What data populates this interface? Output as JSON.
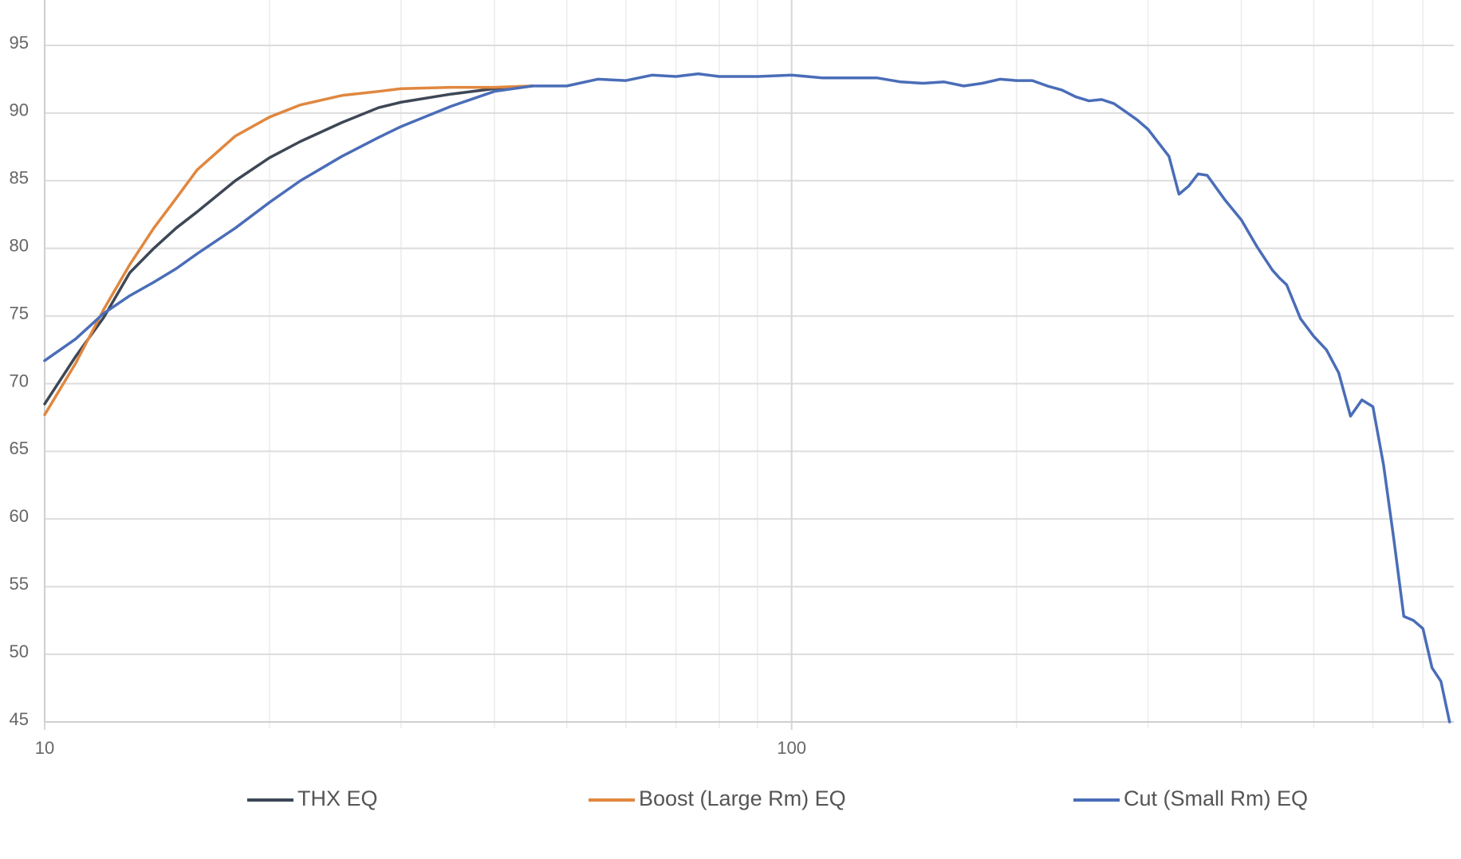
{
  "chart_data": {
    "type": "line",
    "log_x": true,
    "grid": true,
    "xlim": [
      10,
      770
    ],
    "ylim": [
      45,
      98
    ],
    "xticks": [
      10,
      100
    ],
    "xgrid_minor": [
      20,
      30,
      40,
      50,
      60,
      70,
      80,
      90,
      200,
      300,
      400,
      500,
      600,
      700
    ],
    "yticks": [
      45,
      50,
      55,
      60,
      65,
      70,
      75,
      80,
      85,
      90,
      95
    ],
    "series": [
      {
        "name": "THX EQ",
        "color": "#3e4756",
        "x": [
          10,
          11,
          12,
          13,
          14,
          15,
          16,
          18,
          20,
          22,
          25,
          28,
          30,
          35,
          40,
          45
        ],
        "values": [
          68.5,
          72.0,
          74.9,
          78.2,
          80.0,
          81.5,
          82.7,
          85.0,
          86.7,
          87.9,
          89.3,
          90.4,
          90.8,
          91.4,
          91.8,
          92.0
        ]
      },
      {
        "name": "Boost (Large Rm) EQ",
        "color": "#e0873f",
        "x": [
          10,
          11,
          12,
          13,
          14,
          15,
          16,
          18,
          20,
          22,
          25,
          28,
          30,
          35,
          40,
          45
        ],
        "values": [
          67.7,
          71.5,
          75.5,
          78.8,
          81.5,
          83.7,
          85.8,
          88.3,
          89.7,
          90.6,
          91.3,
          91.6,
          91.8,
          91.9,
          91.9,
          92.0
        ]
      },
      {
        "name": "Cut (Small Rm) EQ",
        "color": "#4a6db8",
        "x": [
          10,
          11,
          12,
          13,
          14,
          15,
          16,
          18,
          20,
          22,
          25,
          28,
          30,
          35,
          40,
          45,
          50,
          55,
          60,
          65,
          70,
          75,
          80,
          90,
          100,
          110,
          120,
          130,
          140,
          150,
          160,
          170,
          180,
          190,
          200,
          210,
          220,
          230,
          240,
          250,
          260,
          270,
          280,
          290,
          300,
          320,
          330,
          340,
          350,
          360,
          380,
          400,
          420,
          440,
          450,
          460,
          480,
          500,
          520,
          540,
          560,
          580,
          600,
          620,
          640,
          660,
          680,
          700,
          720,
          740,
          760
        ],
        "values": [
          71.7,
          73.3,
          75.2,
          76.5,
          77.5,
          78.5,
          79.6,
          81.5,
          83.4,
          85.0,
          86.8,
          88.2,
          89.0,
          90.5,
          91.6,
          92.0,
          92.0,
          92.5,
          92.4,
          92.8,
          92.7,
          92.9,
          92.7,
          92.7,
          92.8,
          92.6,
          92.6,
          92.6,
          92.3,
          92.2,
          92.3,
          92.0,
          92.2,
          92.5,
          92.4,
          92.4,
          92.0,
          91.7,
          91.2,
          90.9,
          91.0,
          90.7,
          90.1,
          89.5,
          88.8,
          86.8,
          84.0,
          84.6,
          85.5,
          85.4,
          83.6,
          82.1,
          80.1,
          78.4,
          77.8,
          77.3,
          74.8,
          73.5,
          72.5,
          70.8,
          67.6,
          68.8,
          68.3,
          64.0,
          58.5,
          52.8,
          52.5,
          51.9,
          49.0,
          48.0,
          45.0
        ]
      }
    ]
  }
}
